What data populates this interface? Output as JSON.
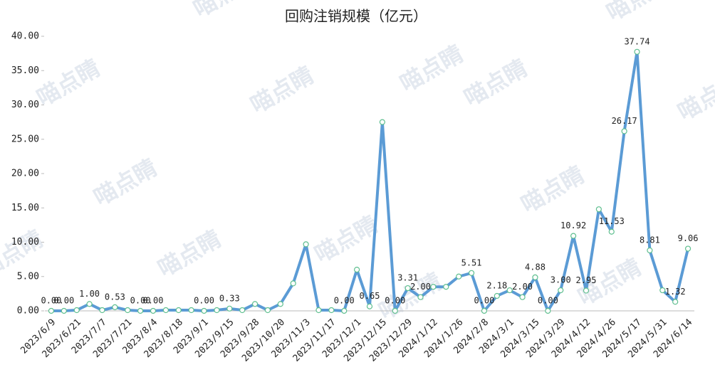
{
  "chart_data": {
    "type": "line",
    "title": "回购注销规模（亿元）",
    "watermark": "喵点睛",
    "categories": [
      "2023/6/9",
      null,
      "2023/6/21",
      null,
      "2023/7/7",
      null,
      "2023/7/21",
      null,
      "2023/8/4",
      null,
      "2023/8/18",
      null,
      "2023/9/1",
      null,
      "2023/9/15",
      null,
      "2023/9/28",
      null,
      "2023/10/20",
      null,
      "2023/11/3",
      null,
      "2023/11/17",
      null,
      "2023/12/1",
      null,
      "2023/12/15",
      null,
      "2023/12/29",
      null,
      "2024/1/12",
      null,
      "2024/1/26",
      null,
      "2024/2/8",
      null,
      "2024/3/1",
      null,
      "2024/3/15",
      null,
      "2024/3/29",
      null,
      "2024/4/12",
      null,
      "2024/4/26",
      null,
      "2024/5/17",
      null,
      "2024/5/31",
      null,
      "2024/6/14"
    ],
    "values": [
      0,
      0,
      0.1,
      1.0,
      0.1,
      0.53,
      0.1,
      0,
      0,
      0.1,
      0.1,
      0.1,
      0,
      0.1,
      0.33,
      0.1,
      1.0,
      0.1,
      1.0,
      4.0,
      9.7,
      0.1,
      0.1,
      0,
      6.0,
      0.65,
      27.5,
      0,
      3.31,
      2.0,
      3.5,
      3.5,
      5.0,
      5.51,
      0,
      2.18,
      3.0,
      2.0,
      4.88,
      0,
      3.0,
      10.92,
      2.95,
      14.8,
      11.53,
      26.17,
      37.74,
      8.81,
      3.0,
      1.32,
      9.06
    ],
    "value_labels": [
      "0.00",
      "0.00",
      null,
      "1.00",
      null,
      "0.53",
      null,
      "0.00",
      "0.00",
      null,
      null,
      null,
      "0.00",
      null,
      "0.33",
      null,
      null,
      null,
      null,
      null,
      null,
      null,
      null,
      "0.00",
      null,
      "0.65",
      null,
      "0.00",
      "3.31",
      "2.00",
      null,
      null,
      null,
      "5.51",
      "0.00",
      "2.18",
      null,
      "2.00",
      "4.88",
      "0.00",
      "3.00",
      "10.92",
      "2.95",
      null,
      "11.53",
      "26.17",
      "37.74",
      "8.81",
      null,
      "1.32",
      "9.06"
    ],
    "color": "#5b9bd5",
    "marker_color": "#5fbf8f",
    "ylim": [
      0,
      40
    ],
    "yticks": [
      {
        "value": 0,
        "label": "0.00"
      },
      {
        "value": 5,
        "label": "5.00"
      },
      {
        "value": 10,
        "label": "10.00"
      },
      {
        "value": 15,
        "label": "15.00"
      },
      {
        "value": 20,
        "label": "20.00"
      },
      {
        "value": 25,
        "label": "25.00"
      },
      {
        "value": 30,
        "label": "30.00"
      },
      {
        "value": 35,
        "label": "35.00"
      },
      {
        "value": 40,
        "label": "40.00"
      }
    ]
  }
}
